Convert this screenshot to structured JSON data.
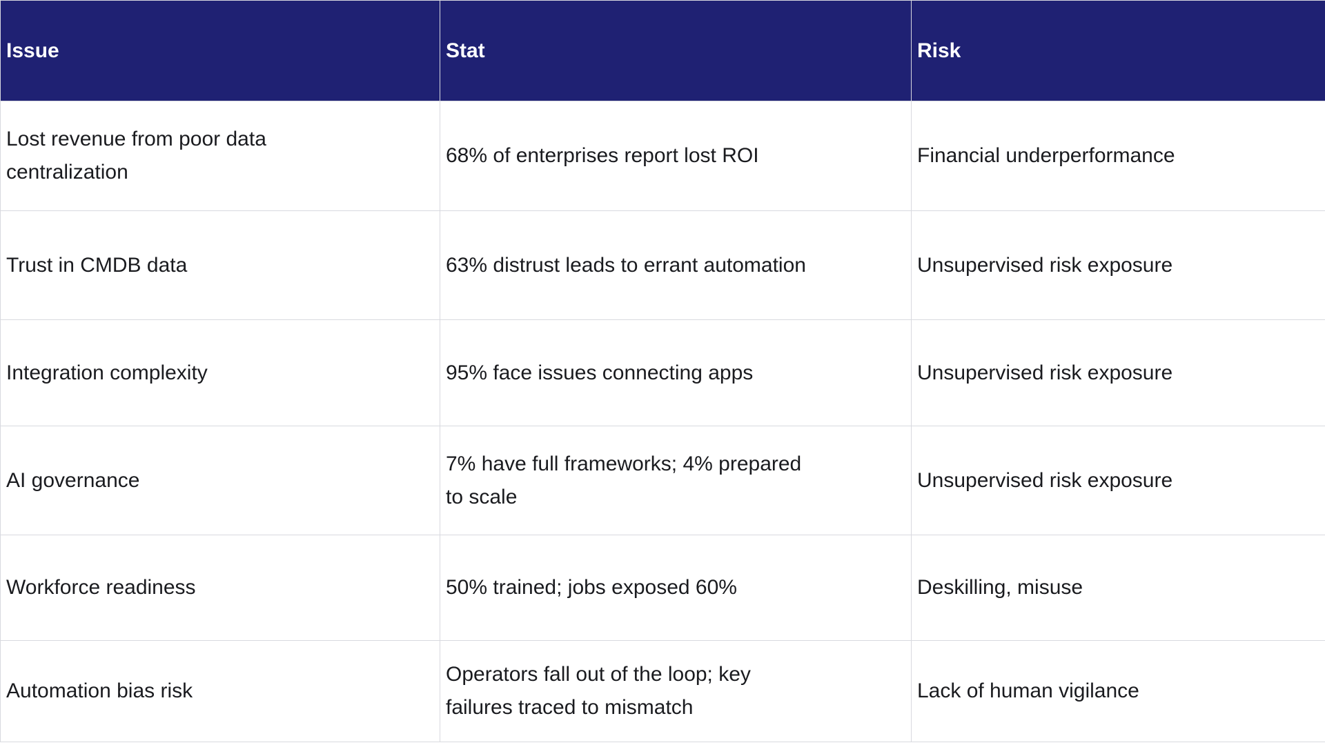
{
  "colors": {
    "header_bg": "#1f2173",
    "header_text": "#ffffff",
    "body_text": "#1a1b1f",
    "border": "#d8d9df"
  },
  "table": {
    "columns": [
      "Issue",
      "Stat",
      "Risk"
    ],
    "rows": [
      {
        "issue": "Lost revenue from poor data\ncentralization",
        "stat": "68% of enterprises report lost ROI",
        "risk": "Financial underperformance"
      },
      {
        "issue": "Trust in CMDB data",
        "stat": "63% distrust leads to errant automation",
        "risk": "Unsupervised risk exposure"
      },
      {
        "issue": "Integration complexity",
        "stat": "95% face issues connecting apps",
        "risk": "Unsupervised risk exposure"
      },
      {
        "issue": "AI governance",
        "stat": "7% have full frameworks; 4% prepared\nto scale",
        "risk": "Unsupervised risk exposure"
      },
      {
        "issue": "Workforce readiness",
        "stat": "50% trained; jobs exposed 60%",
        "risk": "Deskilling, misuse"
      },
      {
        "issue": "Automation bias risk",
        "stat": "Operators fall out of the loop; key\nfailures traced to mismatch",
        "risk": "Lack of human vigilance"
      }
    ]
  }
}
